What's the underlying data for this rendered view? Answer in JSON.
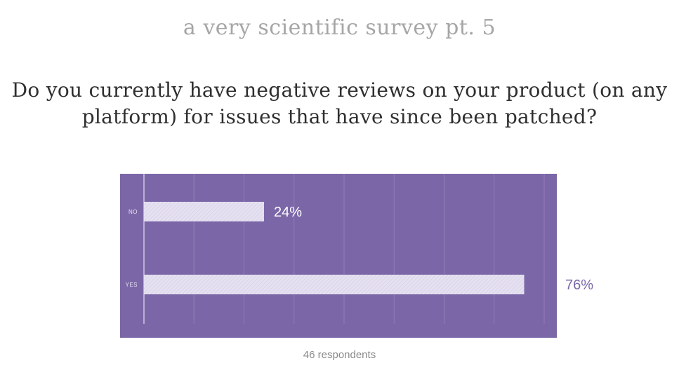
{
  "header": {
    "subtitle": "a very scientific survey pt. 5",
    "question": "Do you currently have negative reviews on your product (on any platform) for issues that have since been patched?"
  },
  "chart_data": {
    "type": "bar",
    "orientation": "horizontal",
    "categories": [
      "NO",
      "YES"
    ],
    "values": [
      24,
      76
    ],
    "value_labels": [
      "24%",
      "76%"
    ],
    "xlim": [
      0,
      80
    ],
    "grid": true,
    "title": "",
    "xlabel": "",
    "ylabel": ""
  },
  "footer": {
    "respondents": "46 respondents"
  },
  "colors": {
    "panel": "#7b67a8",
    "bar": "#e4dff0",
    "grid": "#8f7db6",
    "label_inside": "#ffffff",
    "label_outside": "#7b67a8"
  }
}
